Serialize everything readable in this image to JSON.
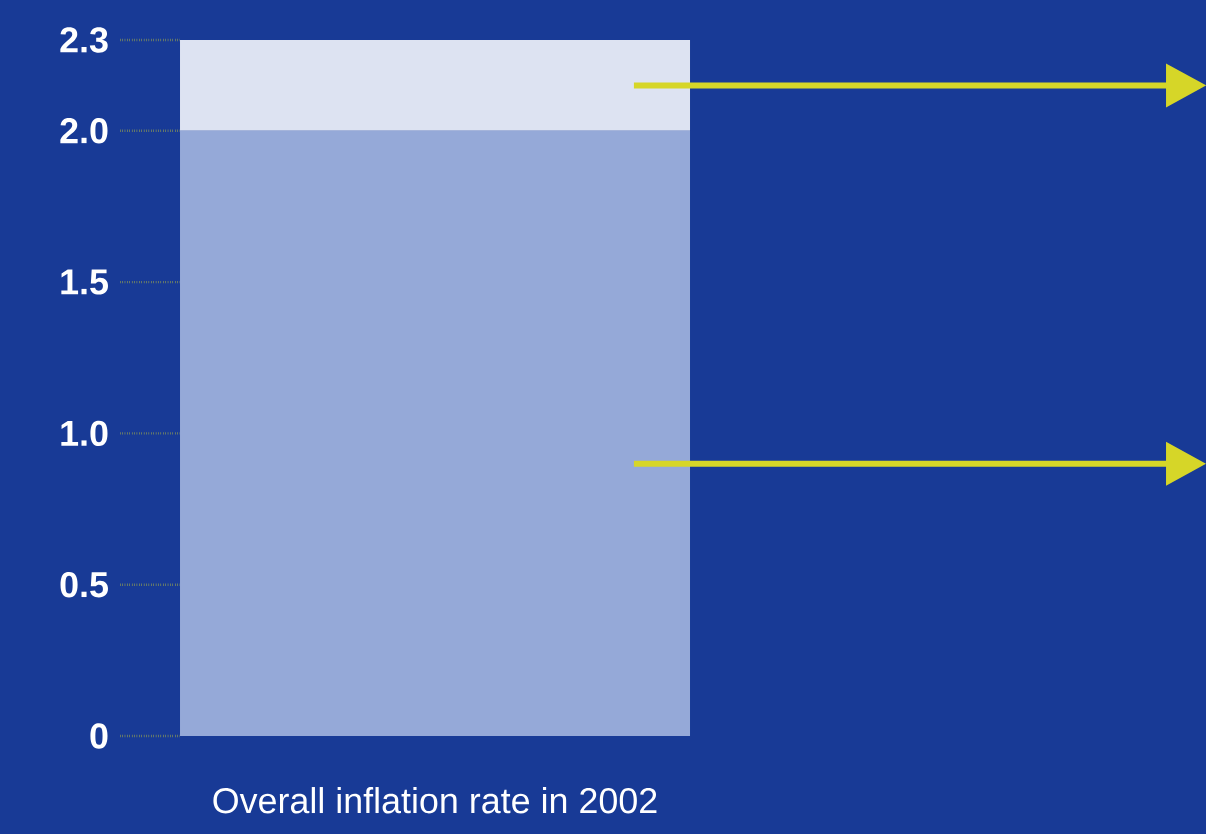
{
  "chart_data": {
    "type": "bar",
    "stacked": true,
    "categories": [
      "Overall inflation rate in 2002"
    ],
    "series": [
      {
        "color": "#95a9d8",
        "values": [
          2.0
        ]
      },
      {
        "color": "#dde3f2",
        "values": [
          0.3
        ]
      }
    ],
    "ylim": [
      0,
      2.3
    ],
    "yticks": [
      0,
      0.5,
      {
        "value": 1.0,
        "label": "1.0"
      },
      1.5,
      {
        "value": 2.0,
        "label": "2.0"
      },
      2.3
    ],
    "grid": false
  }
}
